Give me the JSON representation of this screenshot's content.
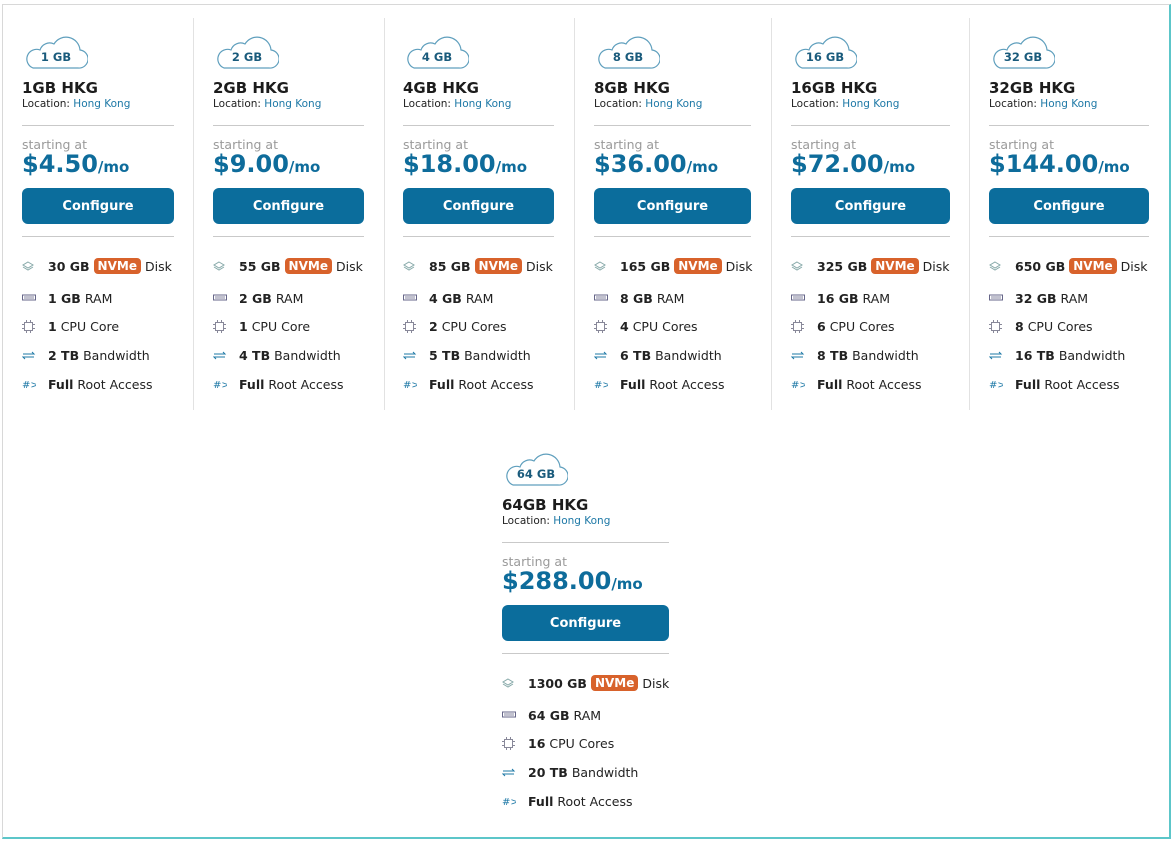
{
  "plans": [
    {
      "badge": "1 GB",
      "name": "1GB HKG",
      "location_label": "Location:",
      "location": "Hong Kong",
      "starting": "starting at",
      "price": "$4.50",
      "per": "/mo",
      "button": "Configure",
      "features": [
        {
          "amount": "30 GB",
          "tag": "NVMe",
          "label": "Disk"
        },
        {
          "amount": "1 GB",
          "label": "RAM"
        },
        {
          "amount": "1",
          "label": "CPU Core"
        },
        {
          "amount": "2 TB",
          "label": "Bandwidth"
        },
        {
          "amount": "Full",
          "label": "Root Access"
        }
      ]
    },
    {
      "badge": "2 GB",
      "name": "2GB HKG",
      "location_label": "Location:",
      "location": "Hong Kong",
      "starting": "starting at",
      "price": "$9.00",
      "per": "/mo",
      "button": "Configure",
      "features": [
        {
          "amount": "55 GB",
          "tag": "NVMe",
          "label": "Disk"
        },
        {
          "amount": "2 GB",
          "label": "RAM"
        },
        {
          "amount": "1",
          "label": "CPU Core"
        },
        {
          "amount": "4 TB",
          "label": "Bandwidth"
        },
        {
          "amount": "Full",
          "label": "Root Access"
        }
      ]
    },
    {
      "badge": "4 GB",
      "name": "4GB HKG",
      "location_label": "Location:",
      "location": "Hong Kong",
      "starting": "starting at",
      "price": "$18.00",
      "per": "/mo",
      "button": "Configure",
      "features": [
        {
          "amount": "85 GB",
          "tag": "NVMe",
          "label": "Disk"
        },
        {
          "amount": "4 GB",
          "label": "RAM"
        },
        {
          "amount": "2",
          "label": "CPU Cores"
        },
        {
          "amount": "5 TB",
          "label": "Bandwidth"
        },
        {
          "amount": "Full",
          "label": "Root Access"
        }
      ]
    },
    {
      "badge": "8 GB",
      "name": "8GB HKG",
      "location_label": "Location:",
      "location": "Hong Kong",
      "starting": "starting at",
      "price": "$36.00",
      "per": "/mo",
      "button": "Configure",
      "features": [
        {
          "amount": "165 GB",
          "tag": "NVMe",
          "label": "Disk"
        },
        {
          "amount": "8 GB",
          "label": "RAM"
        },
        {
          "amount": "4",
          "label": "CPU Cores"
        },
        {
          "amount": "6 TB",
          "label": "Bandwidth"
        },
        {
          "amount": "Full",
          "label": "Root Access"
        }
      ]
    },
    {
      "badge": "16 GB",
      "name": "16GB HKG",
      "location_label": "Location:",
      "location": "Hong Kong",
      "starting": "starting at",
      "price": "$72.00",
      "per": "/mo",
      "button": "Configure",
      "features": [
        {
          "amount": "325 GB",
          "tag": "NVMe",
          "label": "Disk"
        },
        {
          "amount": "16 GB",
          "label": "RAM"
        },
        {
          "amount": "6",
          "label": "CPU Cores"
        },
        {
          "amount": "8 TB",
          "label": "Bandwidth"
        },
        {
          "amount": "Full",
          "label": "Root Access"
        }
      ]
    },
    {
      "badge": "32 GB",
      "name": "32GB HKG",
      "location_label": "Location:",
      "location": "Hong Kong",
      "starting": "starting at",
      "price": "$144.00",
      "per": "/mo",
      "button": "Configure",
      "features": [
        {
          "amount": "650 GB",
          "tag": "NVMe",
          "label": "Disk"
        },
        {
          "amount": "32 GB",
          "label": "RAM"
        },
        {
          "amount": "8",
          "label": "CPU Cores"
        },
        {
          "amount": "16 TB",
          "label": "Bandwidth"
        },
        {
          "amount": "Full",
          "label": "Root Access"
        }
      ]
    },
    {
      "badge": "64 GB",
      "name": "64GB HKG",
      "location_label": "Location:",
      "location": "Hong Kong",
      "starting": "starting at",
      "price": "$288.00",
      "per": "/mo",
      "button": "Configure",
      "features": [
        {
          "amount": "1300 GB",
          "tag": "NVMe",
          "label": "Disk"
        },
        {
          "amount": "64 GB",
          "label": "RAM"
        },
        {
          "amount": "16",
          "label": "CPU Cores"
        },
        {
          "amount": "20 TB",
          "label": "Bandwidth"
        },
        {
          "amount": "Full",
          "label": "Root Access"
        }
      ]
    }
  ]
}
